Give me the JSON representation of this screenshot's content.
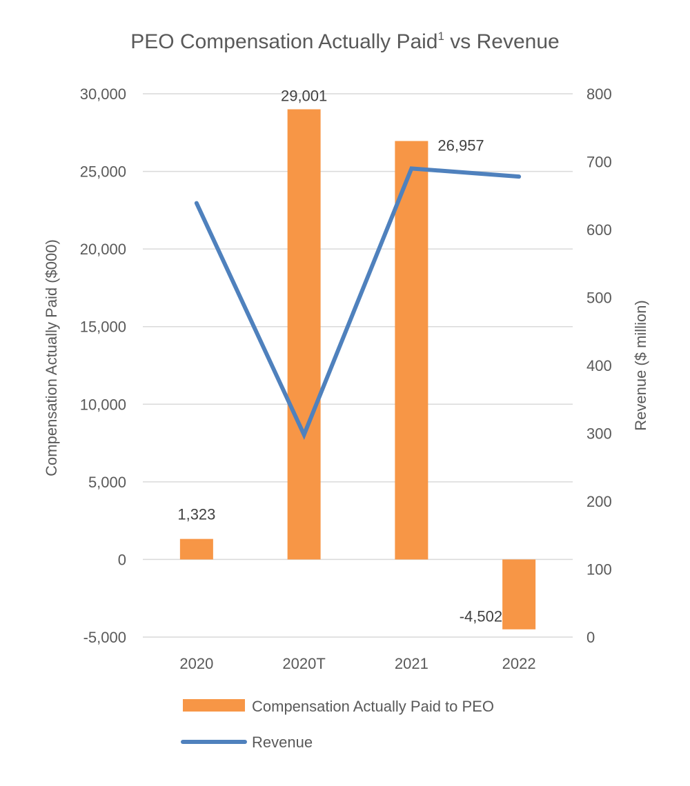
{
  "chart_data": {
    "type": "bar+line",
    "title": "PEO Compensation Actually Paid",
    "title_superscript": "1",
    "title_suffix": " vs Revenue",
    "categories": [
      "2020",
      "2020T",
      "2021",
      "2022"
    ],
    "y_left": {
      "label": "Compensation Actually Paid ($000)",
      "range": [
        -5000,
        30000
      ],
      "ticks": [
        "-5,000",
        "0",
        "5,000",
        "10,000",
        "15,000",
        "20,000",
        "25,000",
        "30,000"
      ],
      "tick_values": [
        -5000,
        0,
        5000,
        10000,
        15000,
        20000,
        25000,
        30000
      ]
    },
    "y_right": {
      "label": "Revenue ($ million)",
      "range": [
        0,
        800
      ],
      "ticks": [
        "0",
        "100",
        "200",
        "300",
        "400",
        "500",
        "600",
        "700",
        "800"
      ],
      "tick_values": [
        0,
        100,
        200,
        300,
        400,
        500,
        600,
        700,
        800
      ]
    },
    "grid": true,
    "legend_placement": "bottom",
    "series": [
      {
        "name": "Compensation Actually Paid to PEO",
        "type": "bar",
        "axis": "left",
        "color": "#F79646",
        "values": [
          1323,
          29001,
          26957,
          -4502
        ],
        "data_labels": [
          "1,323",
          "29,001",
          "26,957",
          "-4,502"
        ]
      },
      {
        "name": "Revenue",
        "type": "line",
        "axis": "right",
        "color": "#4F81BD",
        "values": [
          639,
          298,
          690,
          678
        ]
      }
    ]
  }
}
